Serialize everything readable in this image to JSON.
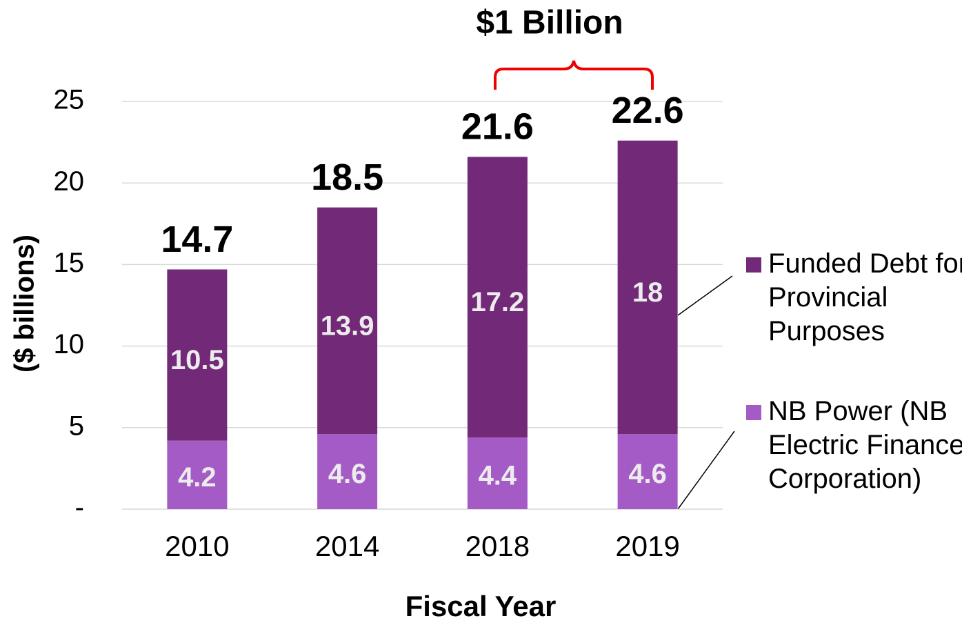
{
  "chart_data": {
    "type": "stacked_bar",
    "annotation": "$1 Billion",
    "xlabel": "Fiscal Year",
    "ylabel": "($ billions)",
    "categories": [
      "2010",
      "2014",
      "2018",
      "2019"
    ],
    "series": [
      {
        "name": "NB Power (NB Electric Finance Corporation)",
        "color": "#a55bc5",
        "values": [
          4.2,
          4.6,
          4.4,
          4.6
        ]
      },
      {
        "name": "Funded Debt for Provincial Purposes",
        "color": "#722a78",
        "values": [
          10.5,
          13.9,
          17.2,
          18
        ]
      }
    ],
    "totals": [
      14.7,
      18.5,
      21.6,
      22.6
    ],
    "ylim": [
      0,
      25
    ],
    "yticks": [
      {
        "value": 0,
        "label": "-"
      },
      5,
      10,
      15,
      20,
      25
    ],
    "grid": true
  }
}
